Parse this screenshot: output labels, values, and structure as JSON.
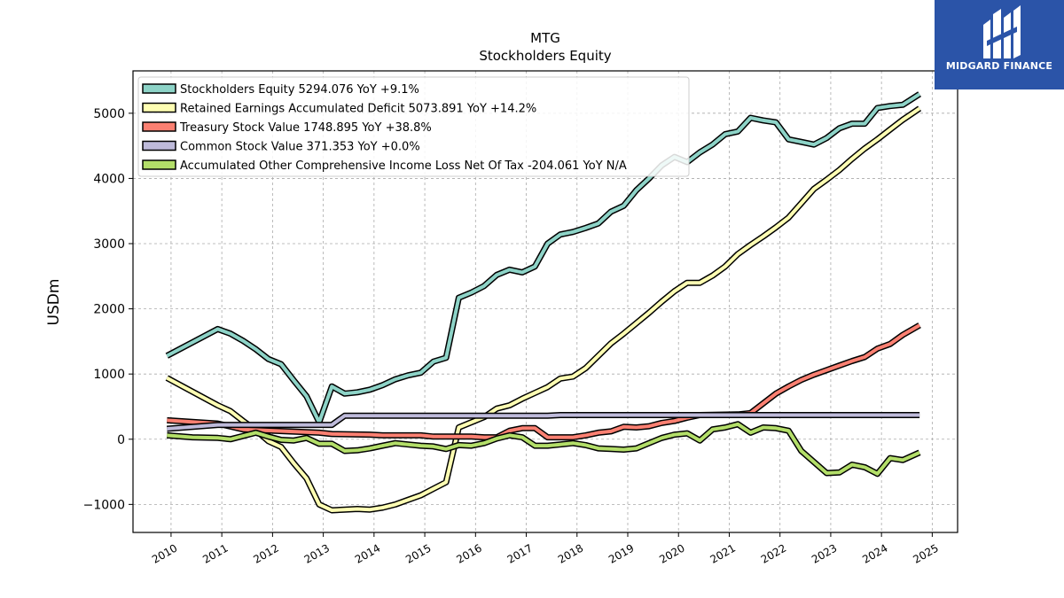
{
  "chart_data": {
    "type": "line",
    "title": "MTG",
    "subtitle": "Stockholders  Equity",
    "xlabel": "",
    "ylabel": "USDm",
    "xlim": [
      2009.25,
      2025.5
    ],
    "ylim": [
      -1430,
      5650
    ],
    "x_ticks": [
      2010,
      2011,
      2012,
      2013,
      2014,
      2015,
      2016,
      2017,
      2018,
      2019,
      2020,
      2021,
      2022,
      2023,
      2024,
      2025
    ],
    "y_ticks": [
      -1000,
      0,
      1000,
      2000,
      3000,
      4000,
      5000
    ],
    "grid": true,
    "legend_position": "top-left",
    "series": [
      {
        "name": "Stockholders Equity  5294.076 YoY +9.1%",
        "color": "#8dd3c7",
        "points": [
          [
            2009.92,
            1280
          ],
          [
            2010.92,
            1690
          ],
          [
            2011.17,
            1620
          ],
          [
            2011.42,
            1510
          ],
          [
            2011.67,
            1380
          ],
          [
            2011.92,
            1230
          ],
          [
            2012.17,
            1150
          ],
          [
            2012.42,
            900
          ],
          [
            2012.67,
            660
          ],
          [
            2012.92,
            260
          ],
          [
            2013.17,
            810
          ],
          [
            2013.42,
            700
          ],
          [
            2013.67,
            720
          ],
          [
            2013.92,
            760
          ],
          [
            2014.17,
            830
          ],
          [
            2014.42,
            920
          ],
          [
            2014.67,
            980
          ],
          [
            2014.92,
            1020
          ],
          [
            2015.17,
            1190
          ],
          [
            2015.42,
            1250
          ],
          [
            2015.67,
            2170
          ],
          [
            2015.92,
            2250
          ],
          [
            2016.17,
            2350
          ],
          [
            2016.42,
            2520
          ],
          [
            2016.67,
            2600
          ],
          [
            2016.92,
            2560
          ],
          [
            2017.17,
            2650
          ],
          [
            2017.42,
            3000
          ],
          [
            2017.67,
            3140
          ],
          [
            2017.92,
            3180
          ],
          [
            2018.17,
            3240
          ],
          [
            2018.42,
            3310
          ],
          [
            2018.67,
            3490
          ],
          [
            2018.92,
            3580
          ],
          [
            2019.17,
            3820
          ],
          [
            2019.42,
            4000
          ],
          [
            2019.67,
            4200
          ],
          [
            2019.92,
            4330
          ],
          [
            2020.17,
            4250
          ],
          [
            2020.42,
            4400
          ],
          [
            2020.67,
            4520
          ],
          [
            2020.92,
            4680
          ],
          [
            2021.17,
            4720
          ],
          [
            2021.42,
            4930
          ],
          [
            2021.67,
            4890
          ],
          [
            2021.92,
            4860
          ],
          [
            2022.17,
            4600
          ],
          [
            2022.42,
            4560
          ],
          [
            2022.67,
            4520
          ],
          [
            2022.92,
            4620
          ],
          [
            2023.17,
            4770
          ],
          [
            2023.42,
            4840
          ],
          [
            2023.67,
            4840
          ],
          [
            2023.92,
            5080
          ],
          [
            2024.17,
            5110
          ],
          [
            2024.42,
            5130
          ],
          [
            2024.75,
            5294
          ]
        ]
      },
      {
        "name": "Retained Earnings Accumulated Deficit  5073.891 YoY +14.2%",
        "color": "#ffffb3",
        "points": [
          [
            2009.92,
            940
          ],
          [
            2010.92,
            520
          ],
          [
            2011.17,
            430
          ],
          [
            2011.42,
            280
          ],
          [
            2011.67,
            140
          ],
          [
            2011.92,
            -30
          ],
          [
            2012.17,
            -120
          ],
          [
            2012.42,
            -370
          ],
          [
            2012.67,
            -600
          ],
          [
            2012.92,
            -1000
          ],
          [
            2013.17,
            -1090
          ],
          [
            2013.42,
            -1080
          ],
          [
            2013.67,
            -1070
          ],
          [
            2013.92,
            -1080
          ],
          [
            2014.17,
            -1050
          ],
          [
            2014.42,
            -1000
          ],
          [
            2014.67,
            -930
          ],
          [
            2014.92,
            -860
          ],
          [
            2015.17,
            -760
          ],
          [
            2015.42,
            -660
          ],
          [
            2015.67,
            180
          ],
          [
            2015.92,
            260
          ],
          [
            2016.17,
            340
          ],
          [
            2016.42,
            470
          ],
          [
            2016.67,
            520
          ],
          [
            2016.92,
            620
          ],
          [
            2017.17,
            710
          ],
          [
            2017.42,
            800
          ],
          [
            2017.67,
            930
          ],
          [
            2017.92,
            960
          ],
          [
            2018.17,
            1090
          ],
          [
            2018.42,
            1280
          ],
          [
            2018.67,
            1470
          ],
          [
            2018.92,
            1620
          ],
          [
            2019.17,
            1780
          ],
          [
            2019.42,
            1940
          ],
          [
            2019.67,
            2110
          ],
          [
            2019.92,
            2270
          ],
          [
            2020.17,
            2400
          ],
          [
            2020.42,
            2400
          ],
          [
            2020.67,
            2510
          ],
          [
            2020.92,
            2650
          ],
          [
            2021.17,
            2840
          ],
          [
            2021.42,
            2980
          ],
          [
            2021.67,
            3110
          ],
          [
            2021.92,
            3250
          ],
          [
            2022.17,
            3400
          ],
          [
            2022.42,
            3620
          ],
          [
            2022.67,
            3840
          ],
          [
            2022.92,
            3980
          ],
          [
            2023.17,
            4130
          ],
          [
            2023.42,
            4300
          ],
          [
            2023.67,
            4460
          ],
          [
            2023.92,
            4600
          ],
          [
            2024.17,
            4750
          ],
          [
            2024.42,
            4900
          ],
          [
            2024.75,
            5074
          ]
        ]
      },
      {
        "name": "Treasury Stock Value  1748.895 YoY +38.8%",
        "color": "#fb8072",
        "points": [
          [
            2009.92,
            290
          ],
          [
            2010.92,
            240
          ],
          [
            2011.42,
            150
          ],
          [
            2012.92,
            100
          ],
          [
            2013.17,
            80
          ],
          [
            2013.92,
            70
          ],
          [
            2014.17,
            60
          ],
          [
            2014.92,
            60
          ],
          [
            2015.17,
            40
          ],
          [
            2015.92,
            40
          ],
          [
            2016.17,
            30
          ],
          [
            2016.42,
            30
          ],
          [
            2016.67,
            130
          ],
          [
            2016.92,
            170
          ],
          [
            2017.17,
            170
          ],
          [
            2017.42,
            30
          ],
          [
            2017.92,
            30
          ],
          [
            2018.17,
            60
          ],
          [
            2018.42,
            100
          ],
          [
            2018.67,
            120
          ],
          [
            2018.92,
            190
          ],
          [
            2019.17,
            180
          ],
          [
            2019.42,
            200
          ],
          [
            2019.67,
            250
          ],
          [
            2019.92,
            280
          ],
          [
            2020.17,
            330
          ],
          [
            2020.42,
            370
          ],
          [
            2021.17,
            380
          ],
          [
            2021.42,
            400
          ],
          [
            2021.67,
            550
          ],
          [
            2021.92,
            700
          ],
          [
            2022.17,
            810
          ],
          [
            2022.42,
            910
          ],
          [
            2022.67,
            990
          ],
          [
            2022.92,
            1060
          ],
          [
            2023.17,
            1130
          ],
          [
            2023.42,
            1200
          ],
          [
            2023.67,
            1260
          ],
          [
            2023.92,
            1390
          ],
          [
            2024.17,
            1460
          ],
          [
            2024.42,
            1600
          ],
          [
            2024.75,
            1749
          ]
        ]
      },
      {
        "name": "Common Stock Value  371.353 YoY +0.0%",
        "color": "#bebada",
        "points": [
          [
            2009.92,
            160
          ],
          [
            2010.92,
            220
          ],
          [
            2013.17,
            220
          ],
          [
            2013.42,
            360
          ],
          [
            2017.42,
            360
          ],
          [
            2017.67,
            371
          ],
          [
            2024.75,
            371
          ]
        ]
      },
      {
        "name": "Accumulated Other Comprehensive Income Loss Net Of Tax  -204.061 YoY N/A",
        "color": "#b3de69",
        "points": [
          [
            2009.92,
            60
          ],
          [
            2010.42,
            30
          ],
          [
            2010.92,
            20
          ],
          [
            2011.17,
            0
          ],
          [
            2011.42,
            50
          ],
          [
            2011.67,
            100
          ],
          [
            2011.92,
            40
          ],
          [
            2012.17,
            -10
          ],
          [
            2012.42,
            -20
          ],
          [
            2012.67,
            20
          ],
          [
            2012.92,
            -70
          ],
          [
            2013.17,
            -70
          ],
          [
            2013.42,
            -180
          ],
          [
            2013.67,
            -170
          ],
          [
            2013.92,
            -140
          ],
          [
            2014.17,
            -100
          ],
          [
            2014.42,
            -60
          ],
          [
            2014.67,
            -80
          ],
          [
            2014.92,
            -100
          ],
          [
            2015.17,
            -110
          ],
          [
            2015.42,
            -150
          ],
          [
            2015.67,
            -90
          ],
          [
            2015.92,
            -100
          ],
          [
            2016.17,
            -60
          ],
          [
            2016.42,
            10
          ],
          [
            2016.67,
            60
          ],
          [
            2016.92,
            30
          ],
          [
            2017.17,
            -100
          ],
          [
            2017.42,
            -100
          ],
          [
            2017.67,
            -80
          ],
          [
            2017.92,
            -60
          ],
          [
            2018.17,
            -90
          ],
          [
            2018.42,
            -140
          ],
          [
            2018.67,
            -150
          ],
          [
            2018.92,
            -160
          ],
          [
            2019.17,
            -140
          ],
          [
            2019.42,
            -60
          ],
          [
            2019.67,
            20
          ],
          [
            2019.92,
            70
          ],
          [
            2020.17,
            90
          ],
          [
            2020.42,
            -20
          ],
          [
            2020.67,
            150
          ],
          [
            2020.92,
            180
          ],
          [
            2021.17,
            230
          ],
          [
            2021.42,
            100
          ],
          [
            2021.67,
            180
          ],
          [
            2021.92,
            170
          ],
          [
            2022.17,
            130
          ],
          [
            2022.42,
            -180
          ],
          [
            2022.67,
            -350
          ],
          [
            2022.92,
            -520
          ],
          [
            2023.17,
            -510
          ],
          [
            2023.42,
            -390
          ],
          [
            2023.67,
            -430
          ],
          [
            2023.92,
            -530
          ],
          [
            2024.17,
            -290
          ],
          [
            2024.42,
            -320
          ],
          [
            2024.75,
            -204
          ]
        ]
      }
    ]
  },
  "brand": {
    "name": "MIDGARD FINANCE",
    "color": "#2b54a8"
  }
}
